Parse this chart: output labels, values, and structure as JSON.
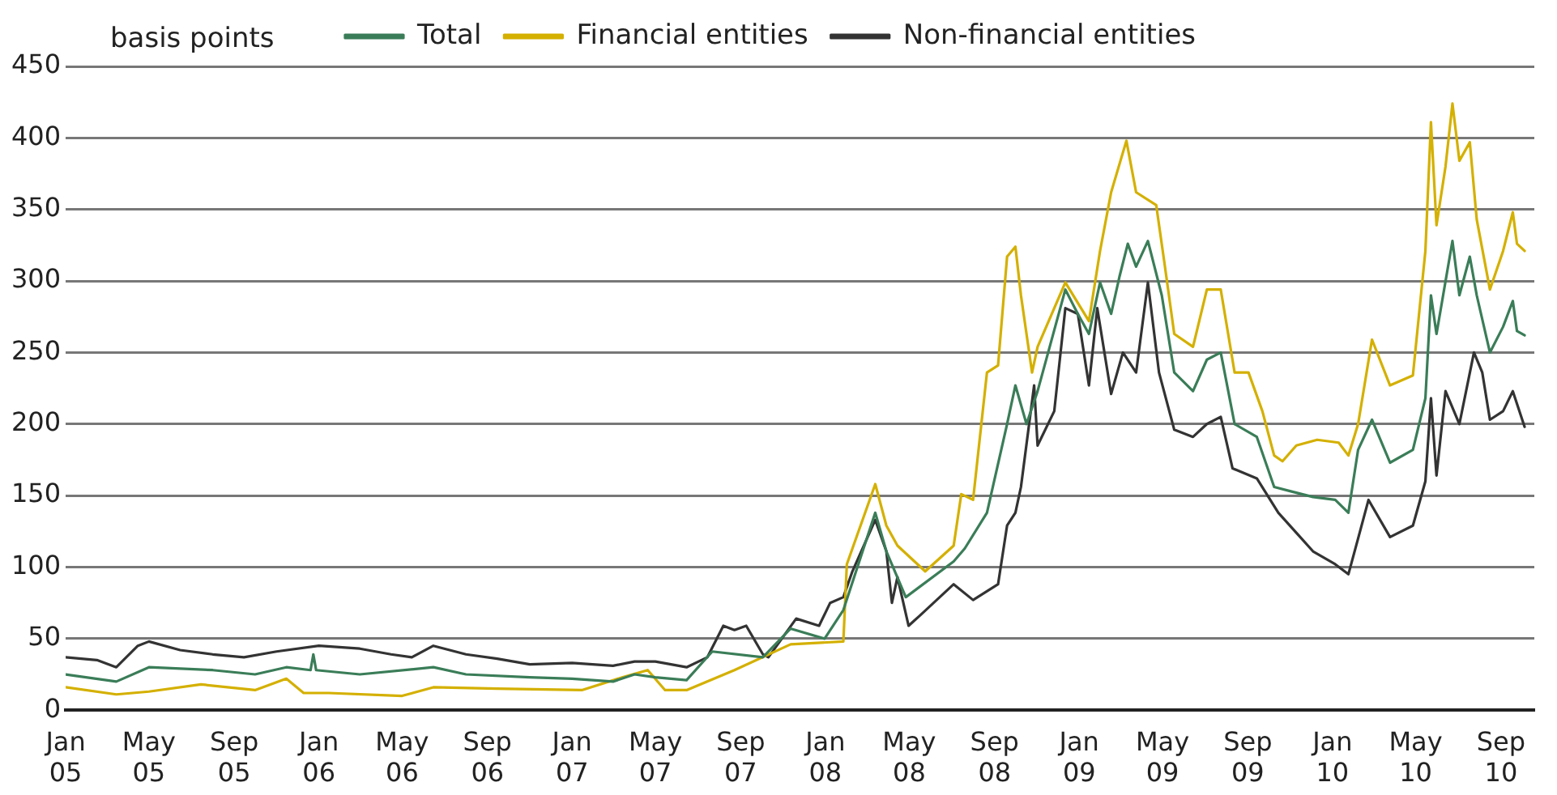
{
  "chart_data": {
    "type": "line",
    "ylabel": "basis points",
    "xlim": [
      "2005-01-01",
      "2010-10-19"
    ],
    "ylim": [
      0,
      450
    ],
    "yticks": [
      0,
      50,
      100,
      150,
      200,
      250,
      300,
      350,
      400,
      450
    ],
    "xticks": [
      {
        "value": "2005-01-01",
        "label": "Jan 05"
      },
      {
        "value": "2005-05-01",
        "label": "May 05"
      },
      {
        "value": "2005-09-01",
        "label": "Sep 05"
      },
      {
        "value": "2006-01-01",
        "label": "Jan 06"
      },
      {
        "value": "2006-05-01",
        "label": "May 06"
      },
      {
        "value": "2006-09-01",
        "label": "Sep 06"
      },
      {
        "value": "2007-01-01",
        "label": "Jan 07"
      },
      {
        "value": "2007-05-01",
        "label": "May 07"
      },
      {
        "value": "2007-09-01",
        "label": "Sep 07"
      },
      {
        "value": "2008-01-01",
        "label": "Jan 08"
      },
      {
        "value": "2008-05-01",
        "label": "May 08"
      },
      {
        "value": "2008-09-01",
        "label": "Sep 08"
      },
      {
        "value": "2009-01-01",
        "label": "Jan 09"
      },
      {
        "value": "2009-05-01",
        "label": "May 09"
      },
      {
        "value": "2009-09-01",
        "label": "Sep 09"
      },
      {
        "value": "2010-01-01",
        "label": "Jan 10"
      },
      {
        "value": "2010-05-01",
        "label": "May 10"
      },
      {
        "value": "2010-09-01",
        "label": "Sep 10"
      }
    ],
    "grid": "y",
    "legend": "top",
    "marker": "none",
    "line_style": "solid",
    "series": [
      {
        "name": "Total",
        "color": "#3a7d58",
        "x": [
          "2005-01-01",
          "2005-03-15",
          "2005-05-01",
          "2005-08-01",
          "2005-10-01",
          "2005-11-15",
          "2005-12-20",
          "2005-12-24",
          "2005-12-28",
          "2006-03-01",
          "2006-06-15",
          "2006-08-01",
          "2006-11-01",
          "2007-01-01",
          "2007-03-01",
          "2007-04-01",
          "2007-05-01",
          "2007-06-15",
          "2007-07-22",
          "2007-10-03",
          "2007-11-12",
          "2007-12-31",
          "2008-01-27",
          "2008-03-13",
          "2008-03-29",
          "2008-04-26",
          "2008-07-04",
          "2008-07-20",
          "2008-08-21",
          "2008-09-19",
          "2008-10-01",
          "2008-10-17",
          "2008-11-02",
          "2008-12-12",
          "2008-12-30",
          "2009-01-15",
          "2009-01-31",
          "2009-02-16",
          "2009-02-28",
          "2009-03-12",
          "2009-03-24",
          "2009-04-10",
          "2009-04-30",
          "2009-05-18",
          "2009-06-14",
          "2009-07-04",
          "2009-07-24",
          "2009-08-13",
          "2009-09-14",
          "2009-10-09",
          "2009-11-02",
          "2009-12-04",
          "2010-01-05",
          "2010-01-24",
          "2010-02-07",
          "2010-02-27",
          "2010-03-25",
          "2010-04-27",
          "2010-05-15",
          "2010-05-23",
          "2010-05-31",
          "2010-06-23",
          "2010-07-03",
          "2010-07-18",
          "2010-07-28",
          "2010-08-16",
          "2010-09-04",
          "2010-09-18",
          "2010-09-24",
          "2010-10-05"
        ],
        "values": [
          25,
          20,
          30,
          28,
          25,
          30,
          28,
          39,
          28,
          25,
          30,
          25,
          23,
          22,
          20,
          25,
          23,
          21,
          41,
          37,
          57,
          50,
          70,
          138,
          111,
          79,
          104,
          113,
          138,
          200,
          227,
          200,
          223,
          294,
          277,
          263,
          299,
          277,
          303,
          326,
          310,
          328,
          290,
          236,
          223,
          245,
          250,
          200,
          191,
          156,
          153,
          149,
          147,
          138,
          182,
          203,
          173,
          182,
          218,
          290,
          263,
          328,
          290,
          317,
          290,
          250,
          268,
          286,
          265,
          262
        ]
      },
      {
        "name": "Financial entities",
        "color": "#d4b000",
        "x": [
          "2005-01-01",
          "2005-03-15",
          "2005-05-01",
          "2005-07-15",
          "2005-10-01",
          "2005-11-15",
          "2005-12-10",
          "2006-01-15",
          "2006-05-01",
          "2006-06-15",
          "2006-09-15",
          "2007-01-15",
          "2007-03-15",
          "2007-04-20",
          "2007-05-15",
          "2007-06-15",
          "2007-08-23",
          "2007-11-12",
          "2008-01-27",
          "2008-02-01",
          "2008-03-13",
          "2008-03-29",
          "2008-04-14",
          "2008-05-24",
          "2008-07-04",
          "2008-07-15",
          "2008-08-01",
          "2008-08-21",
          "2008-09-06",
          "2008-09-19",
          "2008-10-01",
          "2008-10-09",
          "2008-10-25",
          "2008-11-02",
          "2008-12-12",
          "2009-01-15",
          "2009-01-31",
          "2009-02-16",
          "2009-03-10",
          "2009-03-24",
          "2009-04-22",
          "2009-05-04",
          "2009-05-18",
          "2009-06-14",
          "2009-07-04",
          "2009-07-24",
          "2009-08-13",
          "2009-09-02",
          "2009-09-22",
          "2009-10-09",
          "2009-10-21",
          "2009-11-10",
          "2009-12-10",
          "2010-01-10",
          "2010-01-24",
          "2010-02-07",
          "2010-02-27",
          "2010-03-25",
          "2010-04-27",
          "2010-05-15",
          "2010-05-23",
          "2010-05-31",
          "2010-06-13",
          "2010-06-23",
          "2010-07-03",
          "2010-07-18",
          "2010-07-28",
          "2010-08-16",
          "2010-09-04",
          "2010-09-18",
          "2010-09-24",
          "2010-10-05"
        ],
        "values": [
          16,
          11,
          13,
          18,
          14,
          22,
          12,
          12,
          10,
          16,
          15,
          14,
          23,
          28,
          14,
          14,
          28,
          46,
          48,
          102,
          158,
          129,
          115,
          97,
          115,
          151,
          147,
          236,
          241,
          317,
          324,
          290,
          236,
          254,
          299,
          272,
          321,
          362,
          398,
          362,
          353,
          312,
          263,
          254,
          294,
          294,
          236,
          236,
          209,
          178,
          174,
          185,
          189,
          187,
          178,
          200,
          259,
          227,
          234,
          321,
          411,
          339,
          380,
          424,
          384,
          397,
          343,
          294,
          321,
          348,
          326,
          321
        ]
      },
      {
        "name": "Non-financial entities",
        "color": "#333333",
        "x": [
          "2005-01-01",
          "2005-02-15",
          "2005-03-15",
          "2005-04-15",
          "2005-05-01",
          "2005-06-15",
          "2005-08-01",
          "2005-09-15",
          "2005-11-01",
          "2006-01-01",
          "2006-03-01",
          "2006-04-15",
          "2006-05-15",
          "2006-06-15",
          "2006-08-01",
          "2006-09-15",
          "2006-11-01",
          "2007-01-01",
          "2007-03-01",
          "2007-04-01",
          "2007-05-01",
          "2007-06-15",
          "2007-07-15",
          "2007-08-07",
          "2007-08-23",
          "2007-09-09",
          "2007-10-03",
          "2007-10-11",
          "2007-11-20",
          "2007-12-23",
          "2008-01-08",
          "2008-01-27",
          "2008-02-09",
          "2008-03-13",
          "2008-03-29",
          "2008-04-06",
          "2008-04-14",
          "2008-04-30",
          "2008-05-16",
          "2008-07-04",
          "2008-08-01",
          "2008-09-06",
          "2008-09-19",
          "2008-10-01",
          "2008-10-09",
          "2008-10-28",
          "2008-11-02",
          "2008-11-26",
          "2008-12-12",
          "2008-12-30",
          "2009-01-15",
          "2009-01-27",
          "2009-02-16",
          "2009-03-05",
          "2009-03-24",
          "2009-04-10",
          "2009-04-26",
          "2009-05-18",
          "2009-06-14",
          "2009-07-04",
          "2009-07-24",
          "2009-08-10",
          "2009-09-14",
          "2009-10-15",
          "2009-11-10",
          "2009-12-04",
          "2010-01-05",
          "2010-01-24",
          "2010-02-07",
          "2010-02-22",
          "2010-03-25",
          "2010-04-27",
          "2010-05-15",
          "2010-05-23",
          "2010-05-31",
          "2010-06-13",
          "2010-07-03",
          "2010-07-24",
          "2010-08-05",
          "2010-08-16",
          "2010-09-04",
          "2010-09-18",
          "2010-10-05"
        ],
        "values": [
          37,
          35,
          30,
          45,
          48,
          42,
          39,
          37,
          41,
          45,
          43,
          39,
          37,
          45,
          39,
          36,
          32,
          33,
          31,
          34,
          34,
          30,
          37,
          59,
          56,
          59,
          39,
          37,
          64,
          59,
          75,
          79,
          97,
          133,
          111,
          75,
          93,
          59,
          66,
          88,
          77,
          88,
          129,
          138,
          156,
          227,
          185,
          209,
          281,
          277,
          227,
          281,
          221,
          250,
          236,
          299,
          236,
          196,
          191,
          200,
          205,
          169,
          162,
          138,
          124,
          111,
          102,
          95,
          120,
          147,
          121,
          129,
          160,
          218,
          164,
          223,
          200,
          250,
          236,
          203,
          209,
          223,
          198
        ]
      }
    ]
  }
}
